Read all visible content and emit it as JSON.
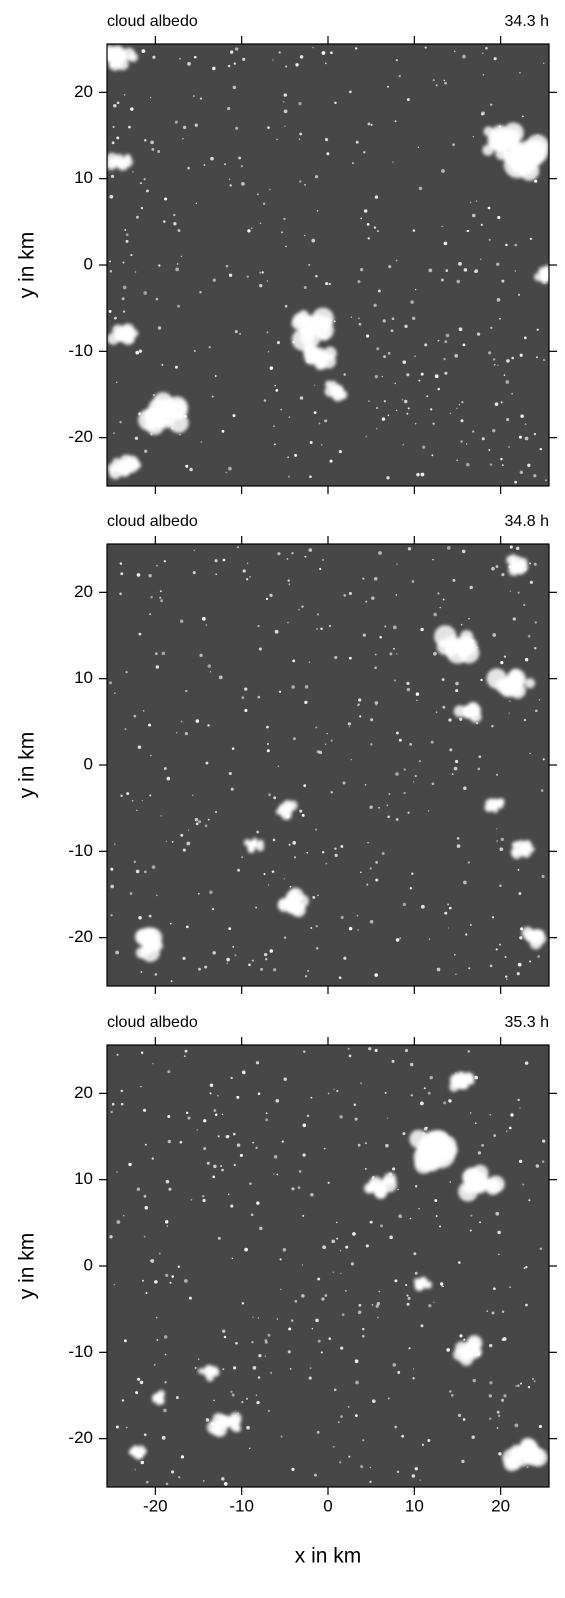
{
  "chart_data": [
    {
      "type": "image",
      "title": "cloud albedo",
      "time_label": "34.3 h",
      "ylabel": "y in km",
      "xlim": [
        -25.6,
        25.6
      ],
      "ylim": [
        -25.6,
        25.6
      ],
      "xticks": [
        -20,
        -10,
        0,
        10,
        20
      ],
      "yticks": [
        -20,
        -10,
        0,
        10,
        20
      ],
      "background": "#474747",
      "cloud_color": "#ffffff"
    },
    {
      "type": "image",
      "title": "cloud albedo",
      "time_label": "34.8 h",
      "ylabel": "y in km",
      "xlim": [
        -25.6,
        25.6
      ],
      "ylim": [
        -25.6,
        25.6
      ],
      "xticks": [
        -20,
        -10,
        0,
        10,
        20
      ],
      "yticks": [
        -20,
        -10,
        0,
        10,
        20
      ],
      "background": "#474747",
      "cloud_color": "#ffffff"
    },
    {
      "type": "image",
      "title": "cloud albedo",
      "time_label": "35.3 h",
      "ylabel": "y in km",
      "xlabel": "x in km",
      "xlim": [
        -25.6,
        25.6
      ],
      "ylim": [
        -25.6,
        25.6
      ],
      "xticks": [
        -20,
        -10,
        0,
        10,
        20
      ],
      "yticks": [
        -20,
        -10,
        0,
        10,
        20
      ],
      "background": "#474747",
      "cloud_color": "#ffffff"
    }
  ]
}
